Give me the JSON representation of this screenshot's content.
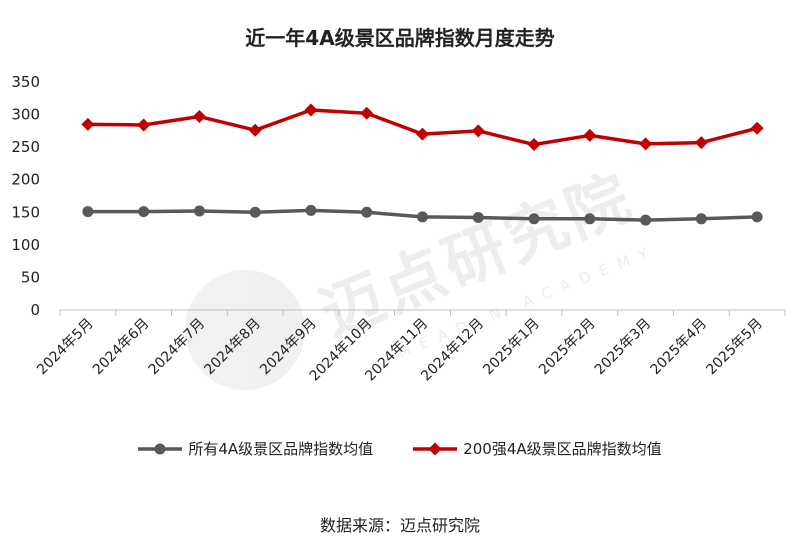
{
  "chart_data": {
    "type": "line",
    "title": "近一年4A级景区品牌指数月度走势",
    "categories": [
      "2024年5月",
      "2024年6月",
      "2024年7月",
      "2024年8月",
      "2024年9月",
      "2024年10月",
      "2024年11月",
      "2024年12月",
      "2025年1月",
      "2025年2月",
      "2025年3月",
      "2025年4月",
      "2025年5月"
    ],
    "series": [
      {
        "name": "所有4A级景区品牌指数均值",
        "color": "#595959",
        "marker": "circle",
        "values": [
          151,
          151,
          152,
          150,
          153,
          150,
          143,
          142,
          140,
          140,
          138,
          140,
          143
        ]
      },
      {
        "name": "200强4A级景区品牌指数均值",
        "color": "#c00000",
        "marker": "diamond",
        "values": [
          285,
          284,
          297,
          276,
          307,
          302,
          270,
          275,
          254,
          268,
          255,
          257,
          279
        ]
      }
    ],
    "ylim": [
      0,
      350
    ],
    "yticks": [
      0,
      50,
      100,
      150,
      200,
      250,
      300,
      350
    ],
    "xlabel": "",
    "ylabel": "",
    "grid": false,
    "legend": "bottom"
  },
  "source": "数据来源：迈点研究院",
  "watermark": {
    "cn": "迈点研究院",
    "en": "MEADIN ACADEMY"
  }
}
